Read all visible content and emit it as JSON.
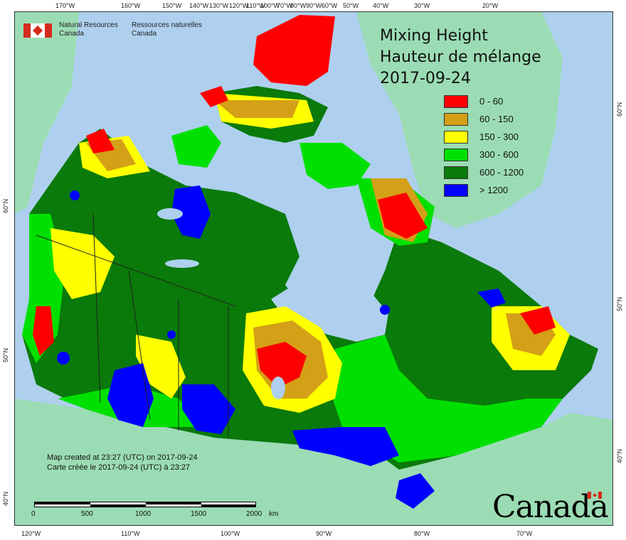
{
  "map": {
    "title_en": "Mixing Height",
    "title_fr": "Hauteur de mélange",
    "date": "2017-09-24"
  },
  "legend": {
    "items": [
      {
        "label": "0 - 60",
        "color": "#ff0000"
      },
      {
        "label": "60 - 150",
        "color": "#d4a017"
      },
      {
        "label": "150 - 300",
        "color": "#ffff00"
      },
      {
        "label": "300 - 600",
        "color": "#00e000"
      },
      {
        "label": "600 - 1200",
        "color": "#0a7a0a"
      },
      {
        "label": "> 1200",
        "color": "#0000ff"
      }
    ]
  },
  "top_longitudes": [
    "170°W",
    "160°W",
    "150°W",
    "140°W",
    "120°W",
    "100°W",
    "80°W",
    "60°W",
    "50°W",
    "40°W",
    "30°W",
    "20°W",
    "130°W",
    "110°W",
    "90°W",
    "70°W"
  ],
  "bottom_longitudes": [
    "120°W",
    "110°W",
    "100°W",
    "90°W",
    "80°W",
    "70°W"
  ],
  "left_latitudes": [
    "60°N",
    "50°N",
    "40°N"
  ],
  "right_latitudes": [
    "60°N",
    "50°N",
    "40°N"
  ],
  "agency": {
    "en_line1": "Natural Resources",
    "en_line2": "Canada",
    "fr_line1": "Ressources naturelles",
    "fr_line2": "Canada"
  },
  "credit": {
    "en": "Map created at 23:27 (UTC) on 2017-09-24",
    "fr": "Carte créée le 2017-09-24 (UTC) à 23:27"
  },
  "scale": {
    "labels": [
      "0",
      "500",
      "1000",
      "1500",
      "2000"
    ],
    "unit": "km"
  },
  "wordmark": "Canada",
  "colors": {
    "ocean": "#aed0ee",
    "land_other": "#9bdcb4",
    "lakes": "#aed0ee"
  }
}
